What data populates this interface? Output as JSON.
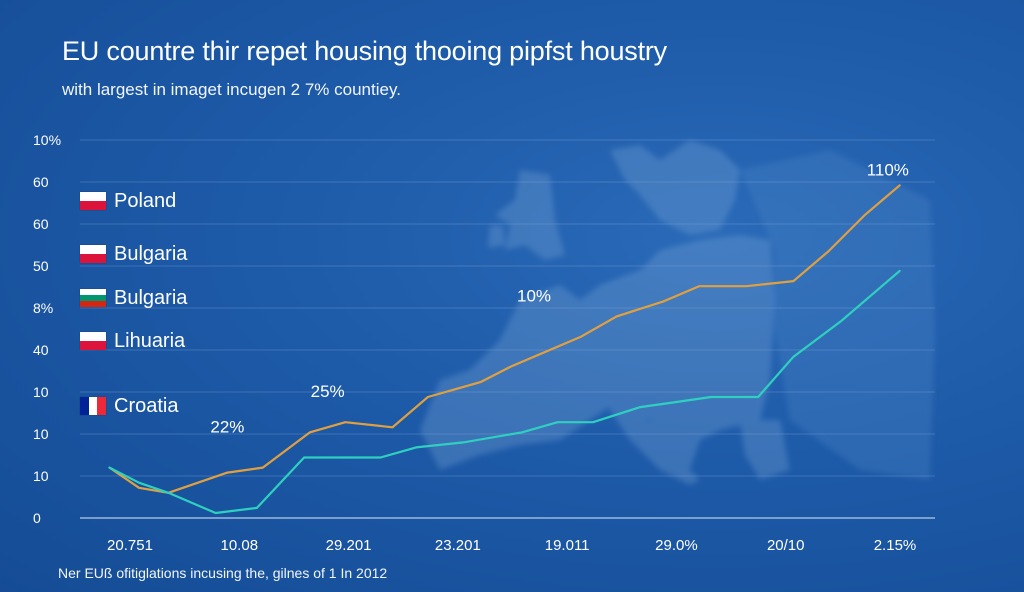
{
  "chart_data": {
    "type": "line",
    "title": "EU countre thir repet housing thooing pipfst houstry",
    "subtitle": "with largest in imaget incugen 2 7% countiey.",
    "footnote": "Ner EUß ofitiglations incusing the, gilnes of 1 In 2012",
    "y_tick_labels": [
      "0",
      "10",
      "10",
      "10",
      "40",
      "8%",
      "50",
      "60",
      "60",
      "10%"
    ],
    "x_tick_labels": [
      "20.751",
      "10.08",
      "29.201",
      "23.201",
      "19.011",
      "29.0%",
      "20/10",
      "2.15%"
    ],
    "legend": [
      {
        "label": "Poland",
        "flag": [
          "#ffffff",
          "#dc143c"
        ],
        "orientation": "horizontal"
      },
      {
        "label": "Bulgaria",
        "flag": [
          "#ffffff",
          "#dc143c"
        ],
        "orientation": "horizontal"
      },
      {
        "label": "Bulgaria",
        "flag": [
          "#ffffff",
          "#00966e",
          "#d62612"
        ],
        "orientation": "horizontal"
      },
      {
        "label": "Lihuaria",
        "flag": [
          "#ffffff",
          "#dc143c"
        ],
        "orientation": "horizontal"
      },
      {
        "label": "Croatia",
        "flag": [
          "#002395",
          "#ffffff",
          "#ed2939"
        ],
        "orientation": "vertical"
      }
    ],
    "series": [
      {
        "color": "#e0a040",
        "x": [
          0,
          0.5,
          1,
          2,
          2.6,
          3.4,
          4,
          4.8,
          5.4,
          6.3,
          6.8,
          8,
          8.6,
          9.4,
          10,
          10.8,
          11.6,
          12.2,
          12.8,
          13.4
        ],
        "y": [
          10,
          6,
          5,
          9,
          10,
          17,
          19,
          18,
          24,
          27,
          30,
          36,
          40,
          43,
          46,
          46,
          47,
          53,
          60,
          66
        ]
      },
      {
        "color": "#2fd0c0",
        "x": [
          0,
          0.5,
          1,
          1.8,
          2.5,
          3.3,
          4,
          4.6,
          5.2,
          6,
          7,
          7.6,
          8.2,
          9,
          9.6,
          10.2,
          11,
          11.6,
          12.4,
          13.4
        ],
        "y": [
          10,
          7,
          5,
          1,
          2,
          12,
          12,
          12,
          14,
          15,
          17,
          19,
          19,
          22,
          23,
          24,
          24,
          32,
          39,
          49
        ]
      }
    ],
    "xlim": [
      -0.5,
      14
    ],
    "ylim": [
      0,
      75
    ],
    "annotations": [
      {
        "text": "110%",
        "x": 13.2,
        "y": 68
      },
      {
        "text": "10%",
        "x": 7.2,
        "y": 43
      },
      {
        "text": "25%",
        "x": 3.7,
        "y": 24
      },
      {
        "text": "22%",
        "x": 2.0,
        "y": 17
      }
    ],
    "grid": true,
    "legend_position": "left"
  }
}
